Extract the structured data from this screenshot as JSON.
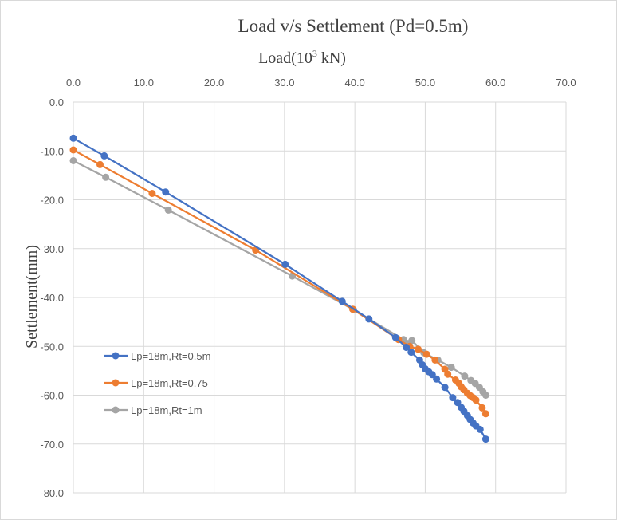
{
  "chart_data": {
    "type": "line",
    "title": "Load v/s Settlement (Pd=0.5m)",
    "xlabel": {
      "prefix": "Load(10",
      "sup": "3",
      "suffix": " kN)"
    },
    "ylabel": "Settlement(mm)",
    "xlim": [
      0,
      70
    ],
    "ylim": [
      -80,
      0
    ],
    "x_ticks": [
      0,
      10,
      20,
      30,
      40,
      50,
      60,
      70
    ],
    "y_ticks": [
      0,
      -10,
      -20,
      -30,
      -40,
      -50,
      -60,
      -70,
      -80
    ],
    "x_tick_labels": [
      "0.0",
      "10.0",
      "20.0",
      "30.0",
      "40.0",
      "50.0",
      "60.0",
      "70.0"
    ],
    "y_tick_labels": [
      "0.0",
      "-10.0",
      "-20.0",
      "-30.0",
      "-40.0",
      "-50.0",
      "-60.0",
      "-70.0",
      "-80.0"
    ],
    "grid": true,
    "x_axis_position": "top",
    "legend_position": "lower-left",
    "series": [
      {
        "name": "Lp=18m,Rt=0.5m",
        "color": "#4472C4",
        "x": [
          0,
          4.4,
          13.1,
          30.1,
          38.2,
          42.0,
          45.8,
          47.3,
          48.0,
          49.2,
          49.6,
          50.0,
          50.5,
          51.0,
          51.6,
          52.8,
          53.9,
          54.6,
          55.1,
          55.5,
          56.0,
          56.4,
          56.8,
          57.2,
          57.8,
          58.6
        ],
        "y": [
          -7.4,
          -11.0,
          -18.4,
          -33.2,
          -40.8,
          -44.4,
          -48.2,
          -50.2,
          -51.2,
          -52.8,
          -53.8,
          -54.6,
          -55.2,
          -55.8,
          -56.7,
          -58.4,
          -60.5,
          -61.5,
          -62.5,
          -63.3,
          -64.2,
          -65.0,
          -65.7,
          -66.3,
          -67.0,
          -69.0
        ]
      },
      {
        "name": "Lp=18m,Rt=0.75",
        "color": "#ED7D31",
        "x": [
          0,
          3.8,
          11.2,
          25.9,
          39.7,
          46.2,
          47.8,
          49.0,
          50.2,
          51.4,
          52.8,
          53.2,
          54.3,
          54.8,
          55.1,
          55.5,
          56.0,
          56.4,
          56.8,
          57.2,
          58.1,
          58.6
        ],
        "y": [
          -9.8,
          -12.8,
          -18.7,
          -30.3,
          -42.4,
          -48.6,
          -50.0,
          -50.6,
          -51.6,
          -52.8,
          -54.7,
          -55.7,
          -56.9,
          -57.6,
          -58.3,
          -58.9,
          -59.6,
          -60.1,
          -60.5,
          -61.0,
          -62.6,
          -63.8
        ]
      },
      {
        "name": "Lp=18m,Rt=1m",
        "color": "#A5A5A5",
        "x": [
          0,
          4.6,
          13.5,
          31.1,
          39.8,
          46.9,
          47.5,
          48.1,
          49.8,
          51.8,
          53.7,
          55.6,
          56.5,
          57.1,
          57.7,
          58.2,
          58.6
        ],
        "y": [
          -12.0,
          -15.4,
          -22.1,
          -35.6,
          -42.5,
          -48.6,
          -49.4,
          -48.8,
          -51.3,
          -52.8,
          -54.3,
          -56.1,
          -57.0,
          -57.6,
          -58.4,
          -59.3,
          -60.0
        ]
      }
    ]
  }
}
